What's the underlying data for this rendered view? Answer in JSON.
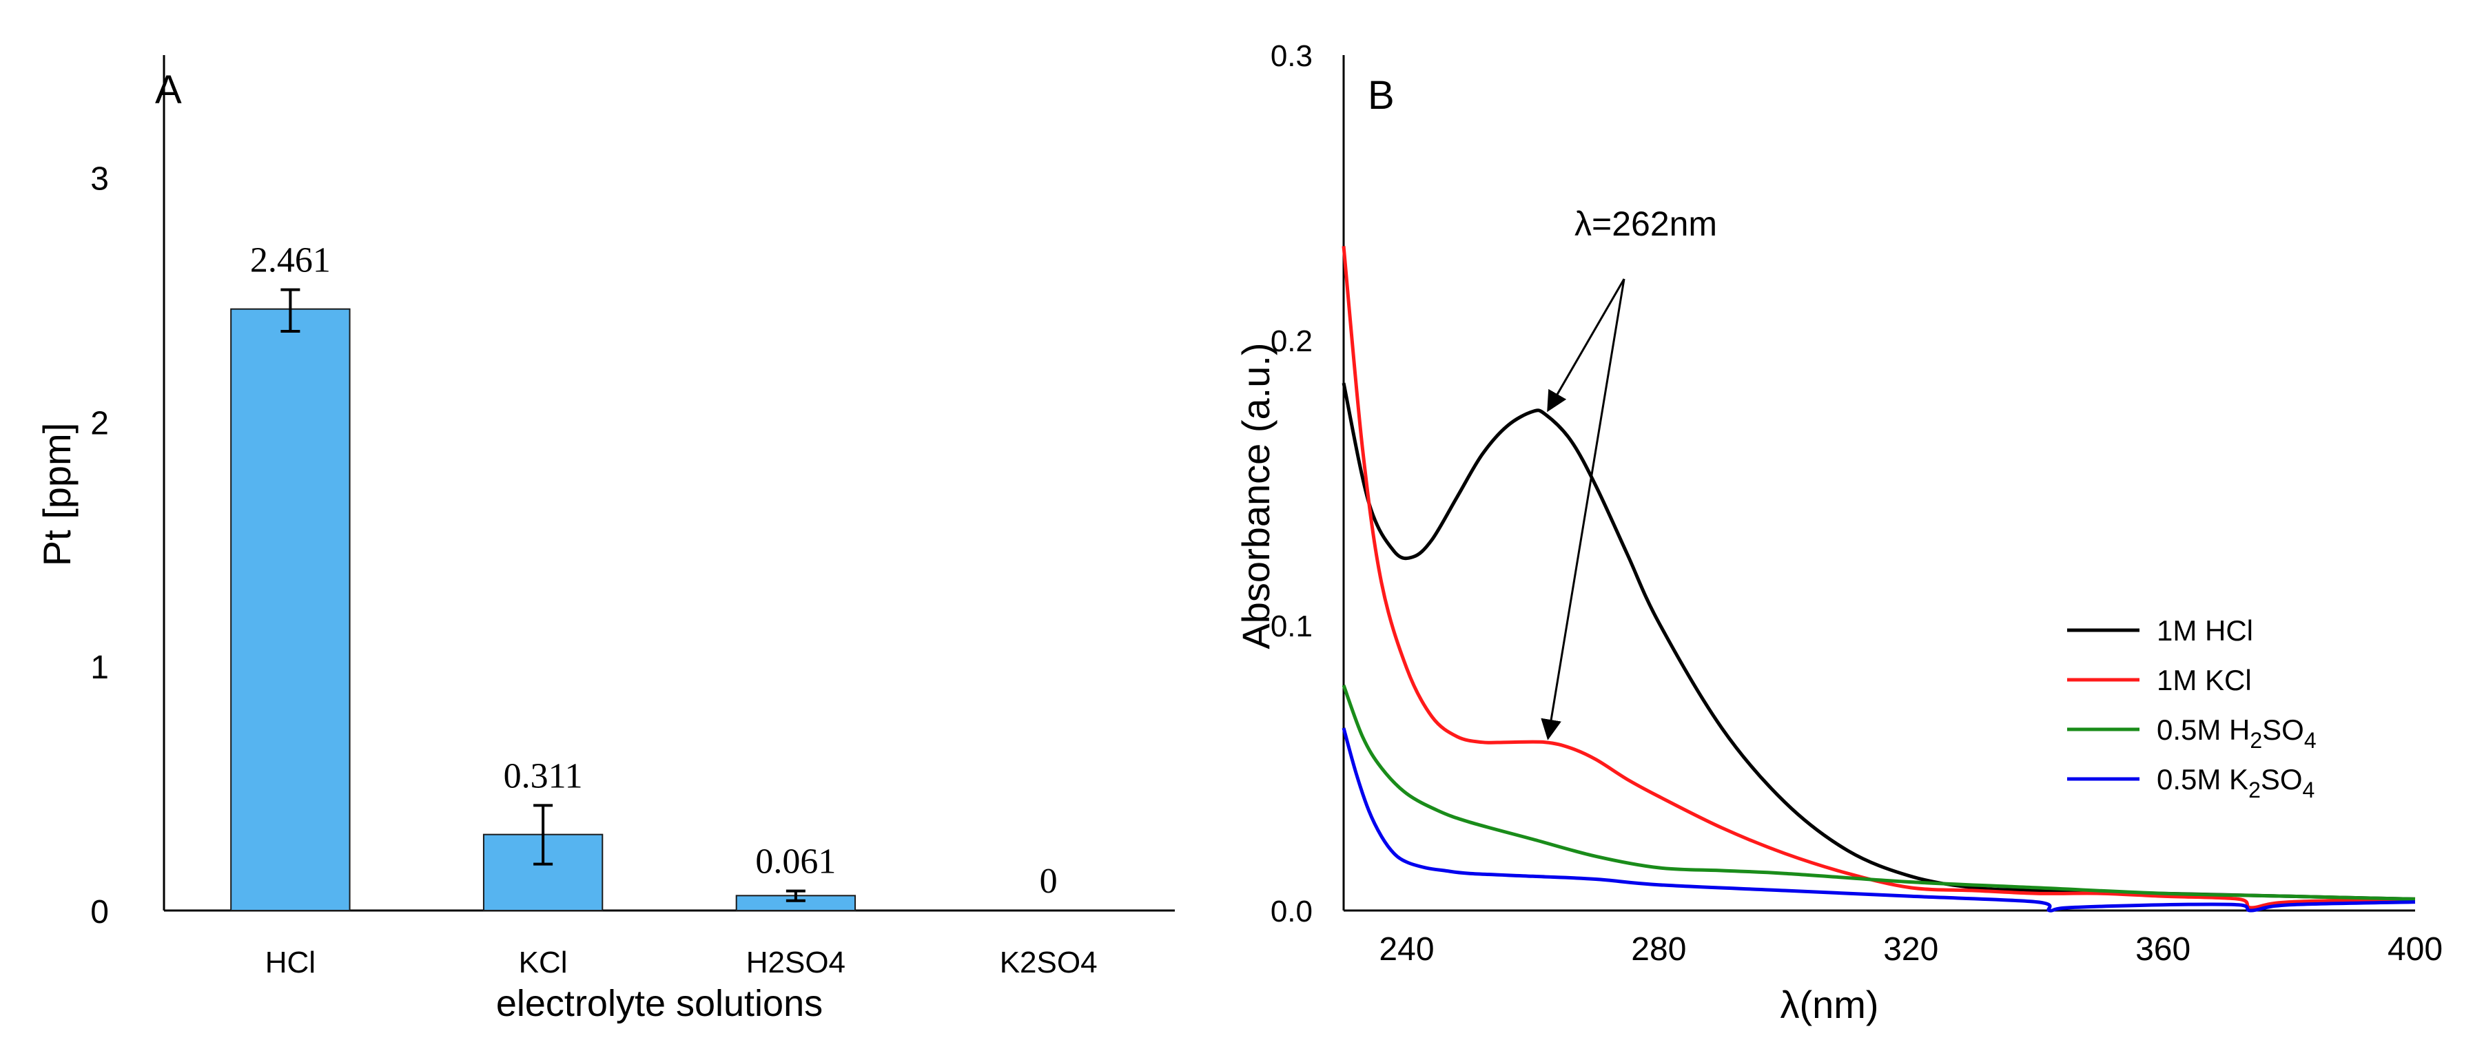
{
  "chart_data": [
    {
      "panel_label": "A",
      "type": "bar",
      "title": "",
      "xlabel": "electrolyte solutions",
      "ylabel": "Pt [ppm]",
      "categories": [
        "HCl",
        "KCl",
        "H2SO4",
        "K2SO4"
      ],
      "values": [
        2.461,
        0.311,
        0.061,
        0
      ],
      "value_labels": [
        "2.461",
        "0.311",
        "0.061",
        "0"
      ],
      "error_low": [
        2.37,
        0.19,
        0.04,
        0
      ],
      "error_high": [
        2.54,
        0.43,
        0.08,
        0
      ],
      "ylim": [
        0,
        3.5
      ],
      "yticks": [
        0,
        1,
        2,
        3
      ],
      "ytick_labels": [
        "0",
        "1",
        "2",
        "3"
      ],
      "bar_color": "#56b4f0",
      "grid": false
    },
    {
      "panel_label": "B",
      "type": "line",
      "title": "",
      "xlabel": "λ(nm)",
      "ylabel": "Absorbance (a.u.)",
      "xlim": [
        230,
        400
      ],
      "ylim": [
        0,
        0.3
      ],
      "xticks": [
        240,
        280,
        320,
        360,
        400
      ],
      "xtick_labels": [
        "240",
        "280",
        "320",
        "360",
        "400"
      ],
      "yticks": [
        0.0,
        0.1,
        0.2,
        0.3
      ],
      "ytick_labels": [
        "0.0",
        "0.1",
        "0.2",
        "0.3"
      ],
      "legend_position": "right",
      "annotation": {
        "text": "λ=262nm",
        "points_to": [
          [
            262,
            0.174
          ],
          [
            262,
            0.059
          ]
        ]
      },
      "series": [
        {
          "name": "1M HCl",
          "legend_main": "1M HCl",
          "legend_sub1": "",
          "legend_mid": "",
          "legend_sub2": "",
          "color": "#000000",
          "x": [
            230,
            234,
            238,
            241,
            244,
            248,
            252,
            256,
            260,
            262,
            266,
            270,
            275,
            280,
            290,
            300,
            310,
            320,
            330,
            340,
            360,
            380,
            400
          ],
          "y": [
            0.185,
            0.143,
            0.126,
            0.124,
            0.13,
            0.145,
            0.16,
            0.17,
            0.175,
            0.174,
            0.165,
            0.149,
            0.125,
            0.101,
            0.064,
            0.038,
            0.021,
            0.012,
            0.008,
            0.007,
            0.006,
            0.005,
            0.004
          ]
        },
        {
          "name": "1M KCl",
          "legend_main": "1M KCl",
          "legend_sub1": "",
          "legend_mid": "",
          "legend_sub2": "",
          "color": "#ff1a1a",
          "x": [
            230,
            233,
            236,
            240,
            244,
            248,
            252,
            256,
            262,
            266,
            270,
            275,
            280,
            290,
            300,
            310,
            320,
            330,
            340,
            350,
            360,
            372,
            374,
            380,
            400
          ],
          "y": [
            0.233,
            0.162,
            0.115,
            0.085,
            0.068,
            0.061,
            0.059,
            0.059,
            0.059,
            0.057,
            0.053,
            0.046,
            0.04,
            0.029,
            0.02,
            0.013,
            0.008,
            0.007,
            0.006,
            0.006,
            0.005,
            0.004,
            0.001,
            0.003,
            0.004
          ]
        },
        {
          "name": "0.5M H2SO4",
          "legend_main": "0.5M H",
          "legend_sub1": "2",
          "legend_mid": "SO",
          "legend_sub2": "4",
          "color": "#1a8c1a",
          "x": [
            230,
            233,
            236,
            240,
            245,
            250,
            260,
            270,
            280,
            290,
            300,
            320,
            340,
            360,
            380,
            400
          ],
          "y": [
            0.079,
            0.061,
            0.05,
            0.041,
            0.035,
            0.031,
            0.025,
            0.019,
            0.015,
            0.014,
            0.013,
            0.01,
            0.008,
            0.006,
            0.005,
            0.004
          ]
        },
        {
          "name": "0.5M K2SO4",
          "legend_main": "0.5M K",
          "legend_sub1": "2",
          "legend_mid": "SO",
          "legend_sub2": "4",
          "color": "#0000ee",
          "x": [
            230,
            232,
            234,
            236,
            238,
            240,
            243,
            246,
            250,
            260,
            270,
            280,
            300,
            320,
            340,
            342,
            345,
            360,
            372,
            374,
            380,
            400
          ],
          "y": [
            0.064,
            0.048,
            0.035,
            0.026,
            0.02,
            0.017,
            0.015,
            0.014,
            0.013,
            0.012,
            0.011,
            0.009,
            0.007,
            0.005,
            0.003,
            0.0,
            0.001,
            0.002,
            0.002,
            0.0,
            0.002,
            0.003
          ]
        }
      ]
    }
  ]
}
